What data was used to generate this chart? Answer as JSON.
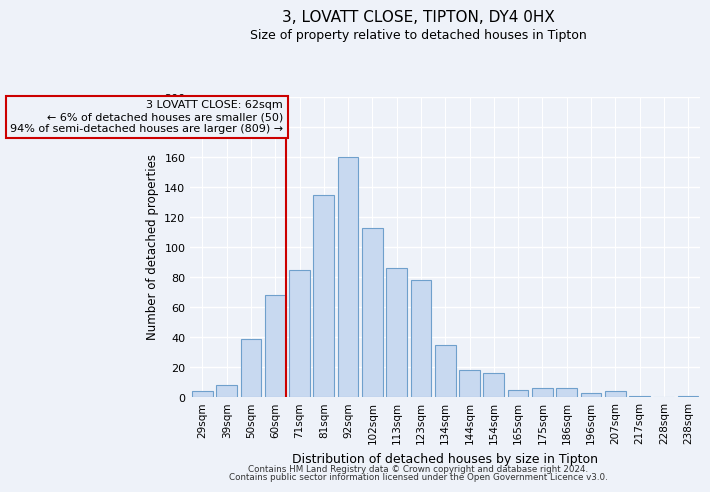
{
  "title": "3, LOVATT CLOSE, TIPTON, DY4 0HX",
  "subtitle": "Size of property relative to detached houses in Tipton",
  "xlabel": "Distribution of detached houses by size in Tipton",
  "ylabel": "Number of detached properties",
  "bar_labels": [
    "29sqm",
    "39sqm",
    "50sqm",
    "60sqm",
    "71sqm",
    "81sqm",
    "92sqm",
    "102sqm",
    "113sqm",
    "123sqm",
    "134sqm",
    "144sqm",
    "154sqm",
    "165sqm",
    "175sqm",
    "186sqm",
    "196sqm",
    "207sqm",
    "217sqm",
    "228sqm",
    "238sqm"
  ],
  "bar_values": [
    4,
    8,
    39,
    68,
    85,
    135,
    160,
    113,
    86,
    78,
    35,
    18,
    16,
    5,
    6,
    6,
    3,
    4,
    1,
    0,
    1
  ],
  "bar_color": "#c8d9f0",
  "bar_edge_color": "#6fa0cc",
  "vline_index": 3,
  "vline_color": "#cc0000",
  "annotation_line1": "3 LOVATT CLOSE: 62sqm",
  "annotation_line2": "← 6% of detached houses are smaller (50)",
  "annotation_line3": "94% of semi-detached houses are larger (809) →",
  "annotation_box_edge": "#cc0000",
  "ylim": [
    0,
    200
  ],
  "yticks": [
    0,
    20,
    40,
    60,
    80,
    100,
    120,
    140,
    160,
    180,
    200
  ],
  "footer1": "Contains HM Land Registry data © Crown copyright and database right 2024.",
  "footer2": "Contains public sector information licensed under the Open Government Licence v3.0.",
  "bg_color": "#eef2f9",
  "grid_color": "#ffffff",
  "title_fontsize": 11,
  "subtitle_fontsize": 9
}
